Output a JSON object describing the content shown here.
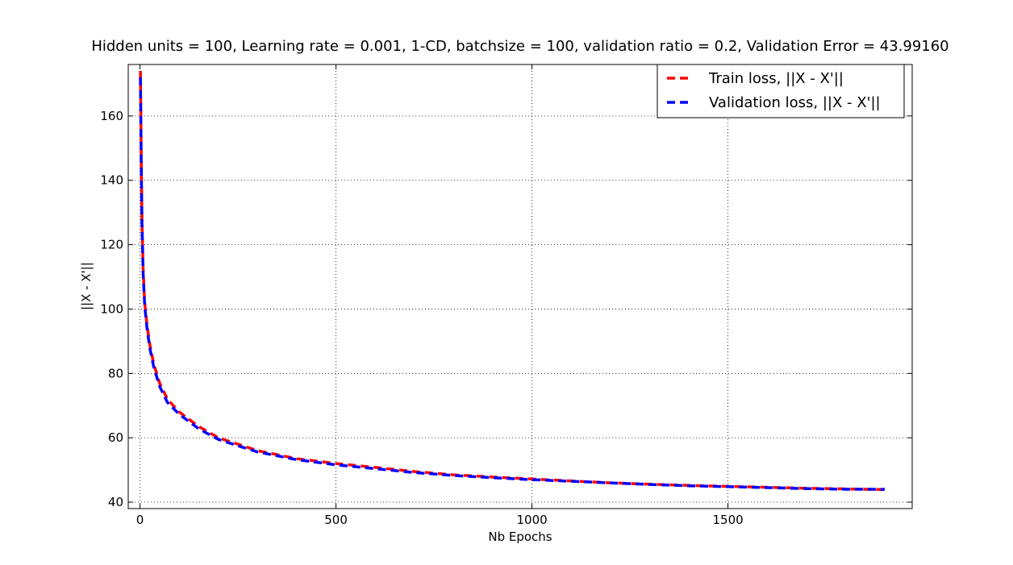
{
  "chart_data": {
    "type": "line",
    "title": "Hidden units = 100, Learning rate = 0.001, 1-CD, batchsize = 100, validation ratio = 0.2, Validation Error = 43.99160",
    "xlabel": "Nb Epochs",
    "ylabel": "||X - X'||",
    "xlim": [
      -30,
      1970
    ],
    "ylim": [
      38,
      176
    ],
    "xticks": [
      0,
      500,
      1000,
      1500
    ],
    "yticks": [
      40,
      60,
      80,
      100,
      120,
      140,
      160
    ],
    "grid": true,
    "legend_position": "top-right",
    "series": [
      {
        "name": "Train loss, ||X - X'||",
        "color": "#ff0000",
        "style": "dashed",
        "x": [
          1,
          3,
          5,
          8,
          12,
          18,
          25,
          35,
          50,
          70,
          100,
          150,
          200,
          250,
          300,
          400,
          500,
          600,
          700,
          800,
          900,
          1000,
          1100,
          1200,
          1300,
          1400,
          1500,
          1600,
          1700,
          1800,
          1900
        ],
        "y": [
          174,
          150,
          128,
          112,
          102,
          95,
          89,
          83,
          77,
          72,
          68,
          63.5,
          60,
          58,
          56,
          53.5,
          52,
          50.8,
          49.5,
          48.5,
          47.8,
          47.2,
          46.6,
          46,
          45.6,
          45.2,
          44.9,
          44.6,
          44.3,
          44.1,
          43.9
        ]
      },
      {
        "name": "Validation loss, ||X - X'||",
        "color": "#0000ff",
        "style": "dashed",
        "x": [
          1,
          3,
          5,
          8,
          12,
          18,
          25,
          35,
          50,
          70,
          100,
          150,
          200,
          250,
          300,
          400,
          500,
          600,
          700,
          800,
          900,
          1000,
          1100,
          1200,
          1300,
          1400,
          1500,
          1600,
          1700,
          1800,
          1900
        ],
        "y": [
          172,
          148,
          127,
          111,
          101,
          94,
          88,
          82,
          76,
          71,
          67.3,
          62.8,
          59.5,
          57.5,
          55.6,
          53.2,
          51.6,
          50.4,
          49.2,
          48.3,
          47.6,
          47,
          46.5,
          46,
          45.5,
          45.1,
          44.8,
          44.5,
          44.2,
          44,
          43.99
        ]
      }
    ]
  }
}
